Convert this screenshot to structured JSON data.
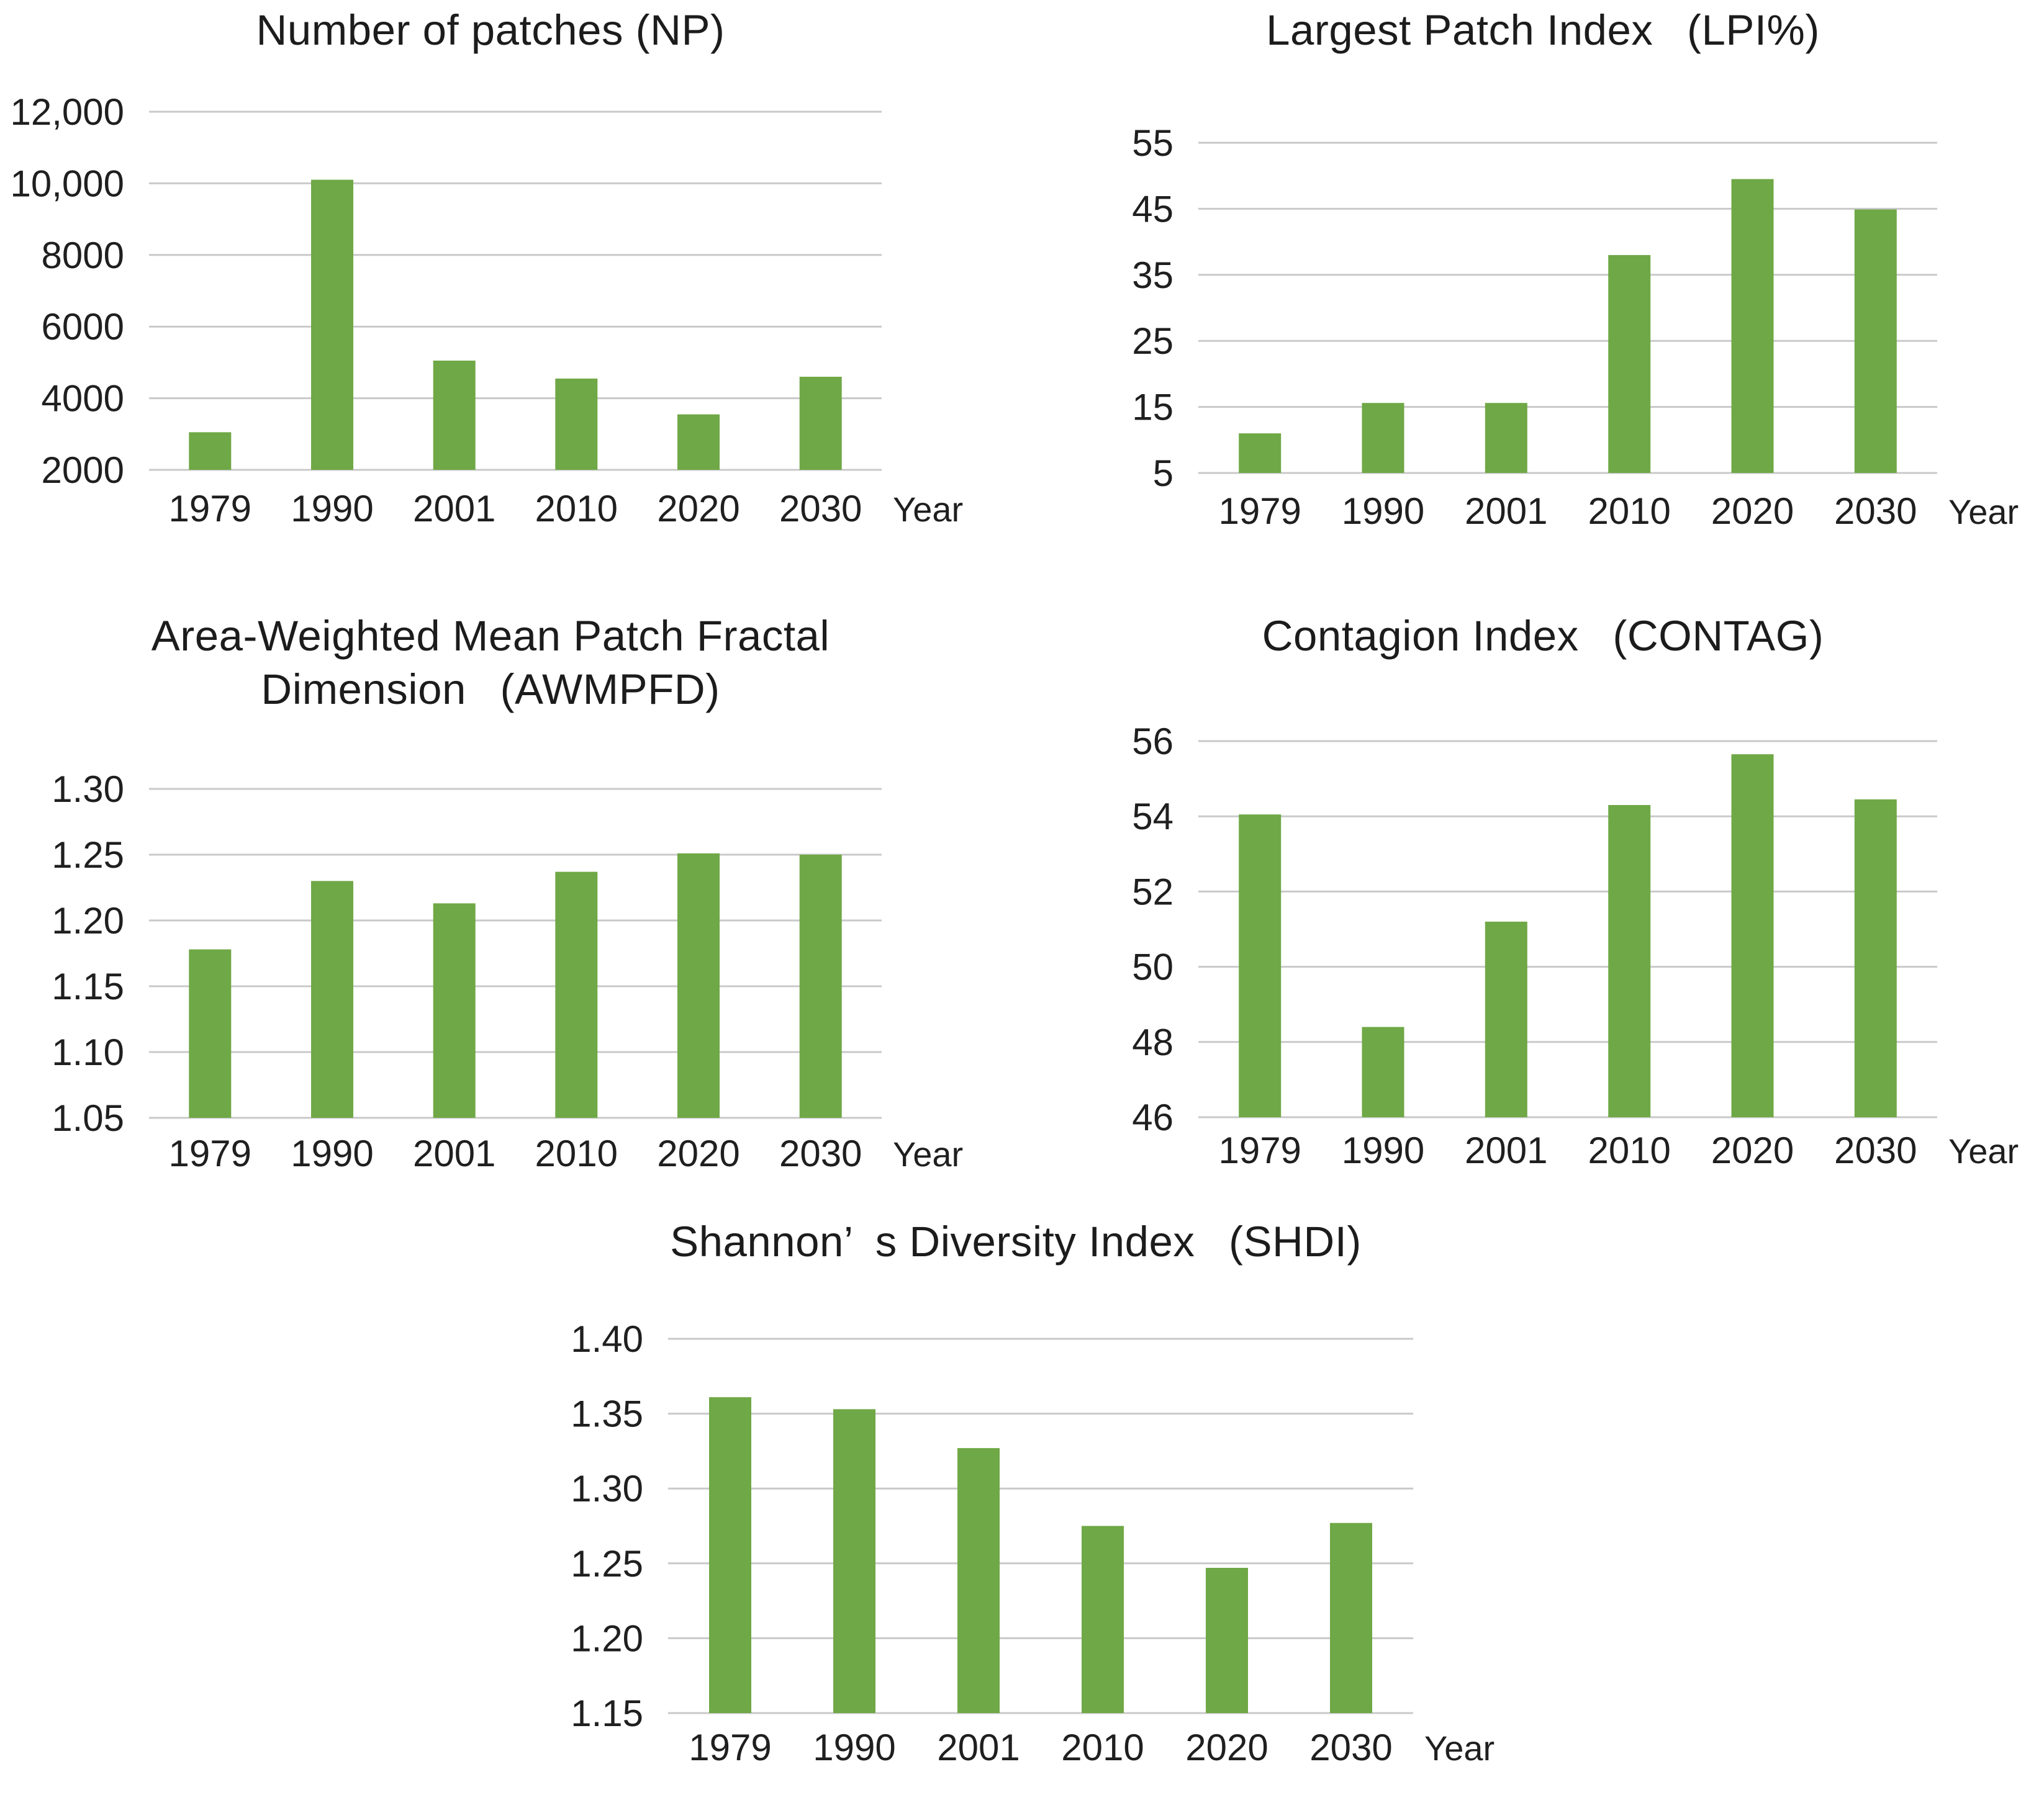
{
  "page": {
    "background": "#ffffff"
  },
  "styles": {
    "bar_color": "#6fa846",
    "grid_color": "#c9c9c9",
    "text_color": "#1f1f1f",
    "tick_font_size": 60,
    "year_font_size": 56
  },
  "x_axis_label": "Year",
  "chart_data": [
    {
      "type": "bar",
      "id": "np",
      "title": "Number of patches (NP)",
      "categories": [
        "1979",
        "1990",
        "2001",
        "2010",
        "2020",
        "2030"
      ],
      "values": [
        3050,
        10100,
        5050,
        4550,
        3550,
        4600
      ],
      "ylim": [
        2000,
        12000
      ],
      "yticks": [
        2000,
        4000,
        6000,
        8000,
        10000,
        12000
      ],
      "ytick_labels": [
        "2000",
        "4000",
        "6000",
        "8000",
        "10,000",
        "12,000"
      ],
      "xlabel": "Year",
      "grid": true,
      "legend": "none"
    },
    {
      "type": "bar",
      "id": "lpi",
      "title": "Largest Patch Index  (LPI%)",
      "categories": [
        "1979",
        "1990",
        "2001",
        "2010",
        "2020",
        "2030"
      ],
      "values": [
        11,
        15.6,
        15.6,
        38,
        49.5,
        44.9
      ],
      "ylim": [
        5,
        55
      ],
      "yticks": [
        5,
        15,
        25,
        35,
        45,
        55
      ],
      "ytick_labels": [
        "5",
        "15",
        "25",
        "35",
        "45",
        "55"
      ],
      "xlabel": "Year",
      "grid": true,
      "legend": "none"
    },
    {
      "type": "bar",
      "id": "awmpfd",
      "title": "Area-Weighted Mean Patch Fractal\nDimension  (AWMPFD)",
      "categories": [
        "1979",
        "1990",
        "2001",
        "2010",
        "2020",
        "2030"
      ],
      "values": [
        1.178,
        1.23,
        1.213,
        1.237,
        1.251,
        1.25
      ],
      "ylim": [
        1.05,
        1.3
      ],
      "yticks": [
        1.05,
        1.1,
        1.15,
        1.2,
        1.25,
        1.3
      ],
      "ytick_labels": [
        "1.05",
        "1.10",
        "1.15",
        "1.20",
        "1.25",
        "1.30"
      ],
      "xlabel": "Year",
      "grid": true,
      "legend": "none"
    },
    {
      "type": "bar",
      "id": "contag",
      "title": "Contagion Index  (CONTAG)",
      "categories": [
        "1979",
        "1990",
        "2001",
        "2010",
        "2020",
        "2030"
      ],
      "values": [
        54.05,
        48.4,
        51.2,
        54.3,
        55.65,
        54.45
      ],
      "ylim": [
        46,
        56
      ],
      "yticks": [
        46,
        48,
        50,
        52,
        54,
        56
      ],
      "ytick_labels": [
        "46",
        "48",
        "50",
        "52",
        "54",
        "56"
      ],
      "xlabel": "Year",
      "grid": true,
      "legend": "none"
    },
    {
      "type": "bar",
      "id": "shdi",
      "title": "Shannon’ s Diversity Index  (SHDI)",
      "categories": [
        "1979",
        "1990",
        "2001",
        "2010",
        "2020",
        "2030"
      ],
      "values": [
        1.361,
        1.353,
        1.327,
        1.275,
        1.247,
        1.277
      ],
      "ylim": [
        1.15,
        1.4
      ],
      "yticks": [
        1.15,
        1.2,
        1.25,
        1.3,
        1.35,
        1.4
      ],
      "ytick_labels": [
        "1.15",
        "1.20",
        "1.25",
        "1.30",
        "1.35",
        "1.40"
      ],
      "xlabel": "Year",
      "grid": true,
      "legend": "none"
    }
  ]
}
